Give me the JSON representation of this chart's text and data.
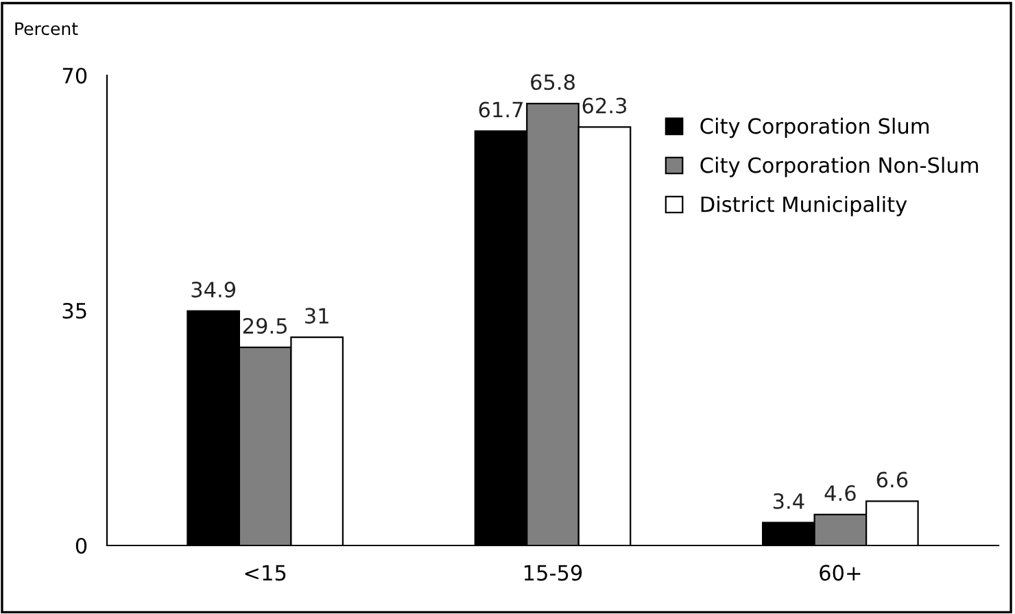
{
  "chart_data": {
    "type": "bar",
    "ylabel": "Percent",
    "categories": [
      "<15",
      "15-59",
      "60+"
    ],
    "series": [
      {
        "name": "City Corporation Slum",
        "color": "#000000",
        "values": [
          34.9,
          61.7,
          3.4
        ]
      },
      {
        "name": "City Corporation Non-Slum",
        "color": "#808080",
        "values": [
          29.5,
          65.8,
          4.6
        ]
      },
      {
        "name": "District Municipality",
        "color": "#ffffff",
        "values": [
          31,
          62.3,
          6.6
        ]
      }
    ],
    "ylim": [
      0,
      70
    ],
    "yticks": [
      0,
      35,
      70
    ],
    "data_labels": true,
    "legend": "top right",
    "grid": false
  }
}
